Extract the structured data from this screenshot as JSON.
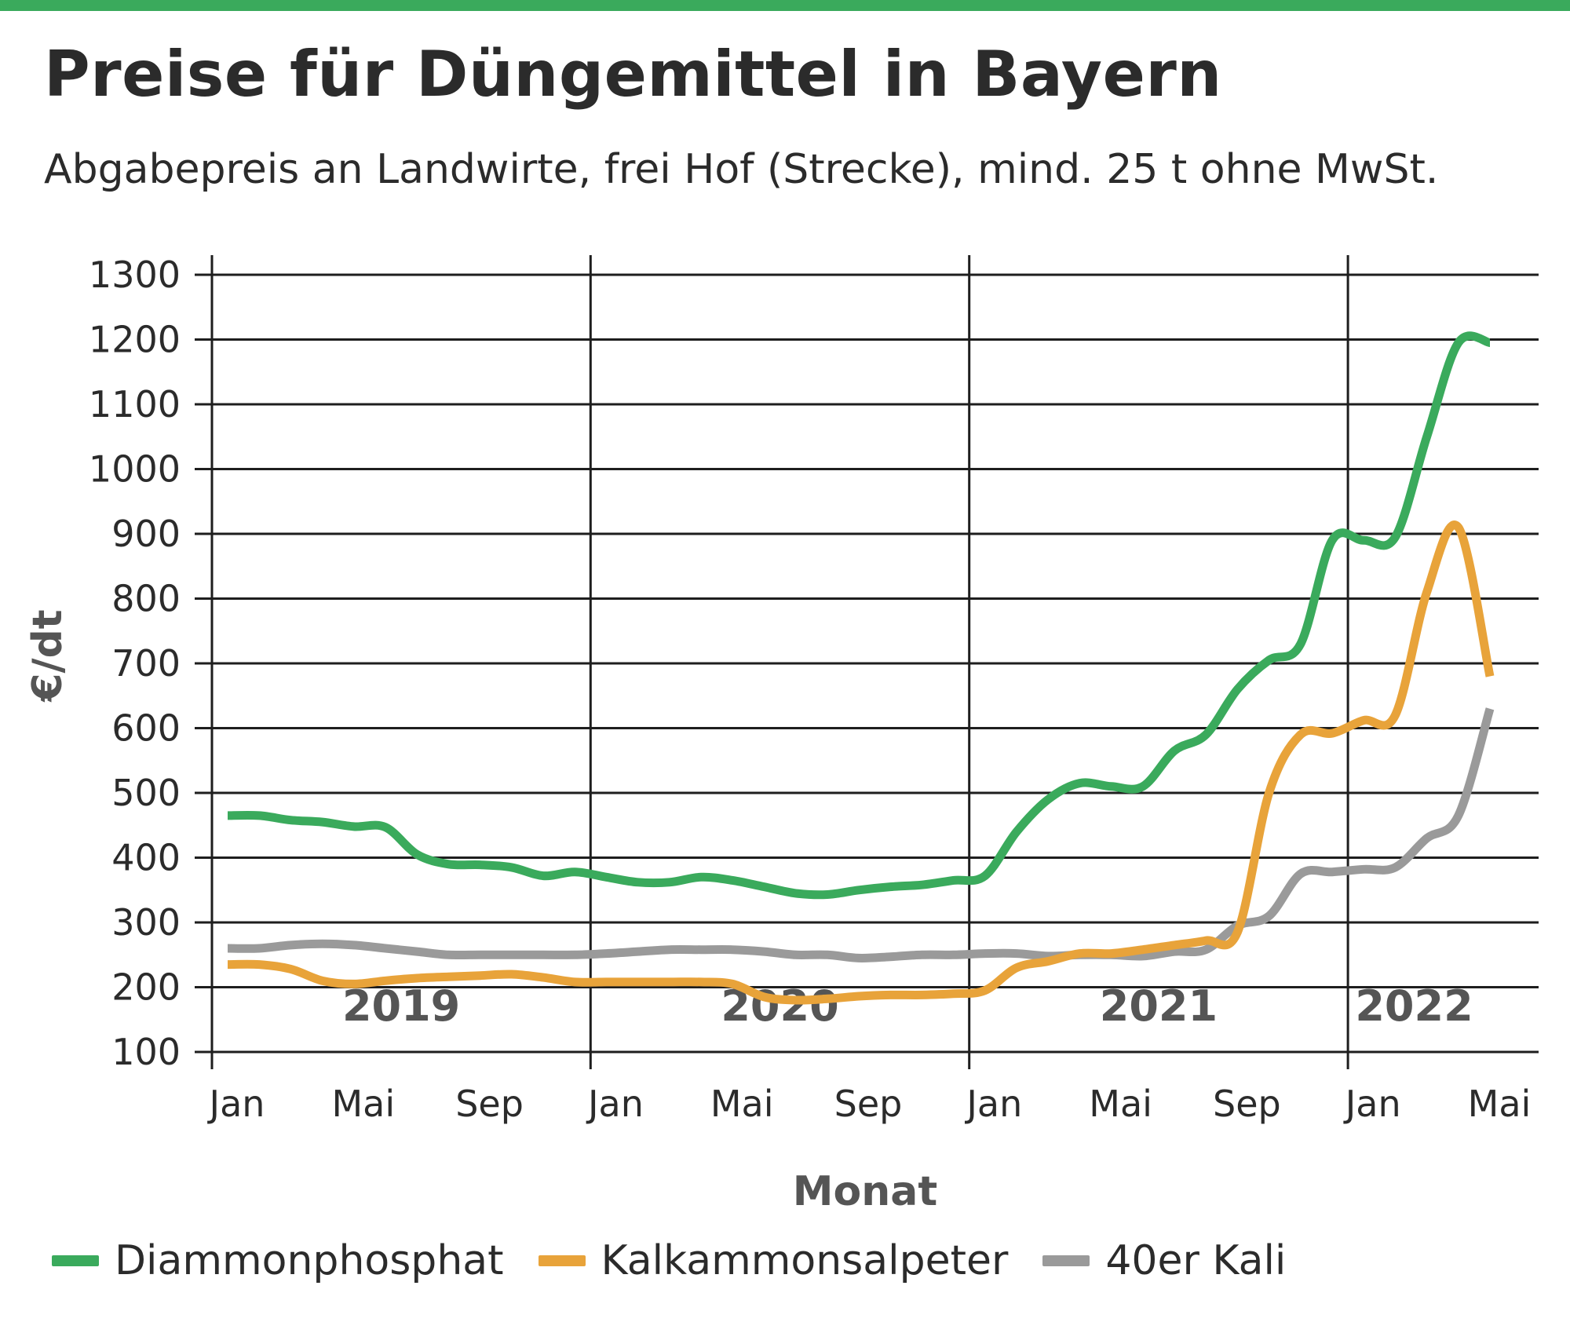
{
  "chart_data": {
    "type": "line",
    "title": "Preise für Düngemittel in Bayern",
    "subtitle": "Abgabepreis an Landwirte, frei Hof (Strecke), mind. 25 t ohne MwSt.",
    "xlabel": "Monat",
    "ylabel": "€/dt",
    "ylim": [
      100,
      1300
    ],
    "yticks": [
      "100",
      "200",
      "300",
      "400",
      "500",
      "600",
      "700",
      "800",
      "900",
      "1000",
      "1100",
      "1200",
      "1300"
    ],
    "x_tick_labels": [
      "Jan",
      "Mai",
      "Sep",
      "Jan",
      "Mai",
      "Sep",
      "Jan",
      "Mai",
      "Sep",
      "Jan",
      "Mai"
    ],
    "year_labels": [
      "2019",
      "2020",
      "2021",
      "2022"
    ],
    "grid": true,
    "legend_position": "bottom",
    "x": [
      "2019-01",
      "2019-02",
      "2019-03",
      "2019-04",
      "2019-05",
      "2019-06",
      "2019-07",
      "2019-08",
      "2019-09",
      "2019-10",
      "2019-11",
      "2019-12",
      "2020-01",
      "2020-02",
      "2020-03",
      "2020-04",
      "2020-05",
      "2020-06",
      "2020-07",
      "2020-08",
      "2020-09",
      "2020-10",
      "2020-11",
      "2020-12",
      "2021-01",
      "2021-02",
      "2021-03",
      "2021-04",
      "2021-05",
      "2021-06",
      "2021-07",
      "2021-08",
      "2021-09",
      "2021-10",
      "2021-11",
      "2021-12",
      "2022-01",
      "2022-02",
      "2022-03",
      "2022-04",
      "2022-05"
    ],
    "series": [
      {
        "name": "Diammonphosphat",
        "color": "#3aaa5c",
        "values": [
          465,
          465,
          458,
          455,
          448,
          447,
          405,
          390,
          389,
          385,
          372,
          378,
          370,
          362,
          362,
          370,
          365,
          355,
          345,
          343,
          350,
          355,
          358,
          365,
          372,
          440,
          490,
          515,
          510,
          510,
          565,
          590,
          660,
          705,
          730,
          890,
          890,
          895,
          1050,
          1195,
          1195
        ]
      },
      {
        "name": "Kalkammonsalpeter",
        "color": "#e8a33a",
        "values": [
          235,
          235,
          228,
          210,
          205,
          210,
          214,
          216,
          218,
          220,
          215,
          208,
          208,
          208,
          208,
          208,
          205,
          185,
          180,
          182,
          186,
          188,
          188,
          190,
          195,
          230,
          240,
          252,
          252,
          258,
          265,
          272,
          285,
          500,
          590,
          592,
          612,
          620,
          810,
          910,
          680
        ]
      },
      {
        "name": "40er Kali",
        "color": "#9a9a9a",
        "values": [
          260,
          260,
          265,
          267,
          265,
          260,
          255,
          250,
          250,
          250,
          250,
          250,
          252,
          255,
          258,
          258,
          258,
          255,
          250,
          250,
          245,
          247,
          250,
          250,
          252,
          252,
          248,
          250,
          250,
          248,
          255,
          258,
          295,
          310,
          375,
          378,
          382,
          385,
          430,
          465,
          630
        ]
      }
    ]
  }
}
